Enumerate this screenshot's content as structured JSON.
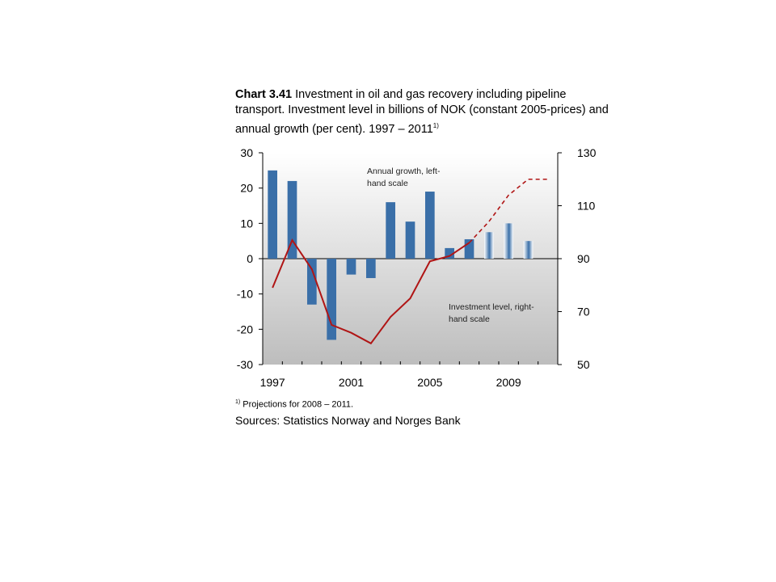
{
  "title": {
    "chart_no": "Chart 3.41",
    "text": "Investment in oil and gas recovery including pipeline transport. Investment level in billions of NOK (constant 2005-prices) and annual growth (per cent). 1997 – 2011",
    "superscript": "1)"
  },
  "footnote": {
    "marker": "1)",
    "text": "Projections for 2008 – 2011."
  },
  "sources": "Sources: Statistics Norway and Norges Bank",
  "colors": {
    "bar": "#3a6fa8",
    "line": "#b01515",
    "plot_bg_top": "#ffffff",
    "plot_bg_bottom": "#bdbdbd"
  },
  "chart_data": {
    "type": "bar+line",
    "x_tick_labels": [
      "1997",
      "2001",
      "2005",
      "2009"
    ],
    "x": [
      1997,
      1998,
      1999,
      2000,
      2001,
      2002,
      2003,
      2004,
      2005,
      2006,
      2007,
      2008,
      2009,
      2010,
      2011
    ],
    "bars": {
      "axis": "left",
      "years": [
        1997,
        1998,
        1999,
        2000,
        2001,
        2002,
        2003,
        2004,
        2005,
        2006,
        2007,
        2008,
        2009,
        2010
      ],
      "values": [
        25,
        22,
        -13,
        -23,
        -4.5,
        -5.5,
        16,
        10.5,
        19,
        3,
        5.5,
        7.5,
        10,
        5
      ],
      "projection_from": 2008
    },
    "line": {
      "axis": "right",
      "values": [
        79,
        97,
        86,
        65,
        62,
        58,
        68,
        75,
        89,
        91,
        96,
        104,
        114,
        120,
        120
      ],
      "projection_from": 2007
    },
    "left_axis": {
      "ylim": [
        -30,
        30
      ],
      "ticks": [
        "30",
        "20",
        "10",
        "0",
        "-10",
        "-20",
        "-30"
      ]
    },
    "right_axis": {
      "ylim": [
        50,
        130
      ],
      "ticks": [
        "130",
        "110",
        "90",
        "70",
        "50"
      ]
    },
    "annotations": [
      {
        "lines": [
          "Annual growth, left-",
          "hand scale"
        ]
      },
      {
        "lines": [
          "Investment level, right-",
          "hand scale"
        ]
      }
    ],
    "legend": "none",
    "grid": false
  }
}
